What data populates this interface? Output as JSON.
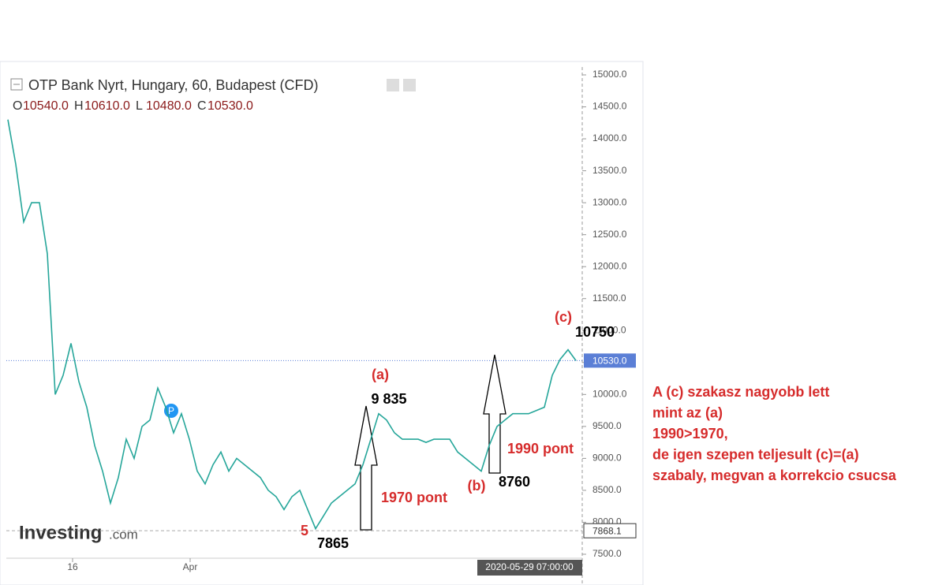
{
  "header": {
    "title": "OTP Bank Nyrt, Hungary, 60, Budapest (CFD)",
    "ohlc": [
      "O",
      "10540.0",
      "H",
      "10610.0",
      "L",
      "10480.0",
      "C",
      "10530.0"
    ]
  },
  "chart_data": {
    "type": "line",
    "color": "#26a69a",
    "values": [
      14300,
      13600,
      12700,
      13000,
      13000,
      12200,
      10000,
      10300,
      10800,
      10200,
      9800,
      9200,
      8800,
      8300,
      8700,
      9300,
      9000,
      9500,
      9600,
      10100,
      9800,
      9400,
      9700,
      9300,
      8800,
      8600,
      8900,
      9100,
      8800,
      9000,
      8900,
      8800,
      8700,
      8500,
      8400,
      8200,
      8400,
      8500,
      8200,
      7900,
      8100,
      8300,
      8400,
      8500,
      8600,
      8900,
      9300,
      9700,
      9600,
      9400,
      9300,
      9300,
      9300,
      9250,
      9300,
      9300,
      9300,
      9100,
      9000,
      8900,
      8800,
      9200,
      9500,
      9600,
      9700,
      9700,
      9700,
      9750,
      9800,
      10300,
      10550,
      10700,
      10530
    ],
    "xlim": [
      -0.2,
      72.8
    ],
    "xticks": [
      {
        "value": 8.2,
        "label": "16"
      },
      {
        "value": 23.1,
        "label": "Apr"
      }
    ],
    "ylim": [
      7500,
      15000
    ],
    "yticks": [
      {
        "value": 7500,
        "label": "7500.0"
      },
      {
        "value": 8000,
        "label": "8000.0"
      },
      {
        "value": 8500,
        "label": "8500.0"
      },
      {
        "value": 9000,
        "label": "9000.0"
      },
      {
        "value": 9500,
        "label": "9500.0"
      },
      {
        "value": 10000,
        "label": "10000.0"
      },
      {
        "value": 10500,
        "label": "10500.0"
      },
      {
        "value": 11000,
        "label": "11000.0"
      },
      {
        "value": 11500,
        "label": "11500.0"
      },
      {
        "value": 12000,
        "label": "12000.0"
      },
      {
        "value": 12500,
        "label": "12500.0"
      },
      {
        "value": 13000,
        "label": "13000.0"
      },
      {
        "value": 13500,
        "label": "13500.0"
      },
      {
        "value": 14000,
        "label": "14000.0"
      },
      {
        "value": 14500,
        "label": "14500.0"
      },
      {
        "value": 15000,
        "label": "15000.0"
      }
    ],
    "current_price": {
      "value": 10530,
      "label": "10530.0"
    },
    "low_price": {
      "value": 7868.1,
      "label": "7868.1"
    },
    "crosshair_date": "2020-05-29 07:00:00",
    "annotations": [
      "(a)",
      "9 835",
      "1970 pont",
      "(b)",
      "8760",
      "1990 pont",
      "(c)",
      "10750",
      "5",
      "7865"
    ],
    "note": [
      "A (c) szakasz nagyobb lett",
      "mint az (a)",
      "1990>1970,",
      "de igen szepen teljesult (c)=(a)",
      "szabaly, megvan a korrekcio csucsa"
    ],
    "logo": [
      "Investing",
      ".com"
    ]
  }
}
